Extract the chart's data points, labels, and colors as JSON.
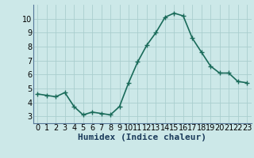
{
  "x": [
    0,
    1,
    2,
    3,
    4,
    5,
    6,
    7,
    8,
    9,
    10,
    11,
    12,
    13,
    14,
    15,
    16,
    17,
    18,
    19,
    20,
    21,
    22,
    23
  ],
  "y": [
    4.6,
    4.5,
    4.4,
    4.7,
    3.7,
    3.1,
    3.3,
    3.2,
    3.1,
    3.7,
    5.4,
    6.9,
    8.1,
    9.0,
    10.1,
    10.4,
    10.2,
    8.6,
    7.6,
    6.6,
    6.1,
    6.1,
    5.5,
    5.4
  ],
  "line_color": "#1a6b5a",
  "bg_color": "#cce8e8",
  "grid_color": "#aacece",
  "xlabel": "Humidex (Indice chaleur)",
  "ylim": [
    2.5,
    11.0
  ],
  "xlim": [
    -0.5,
    23.5
  ],
  "yticks": [
    3,
    4,
    5,
    6,
    7,
    8,
    9,
    10
  ],
  "xticks": [
    0,
    1,
    2,
    3,
    4,
    5,
    6,
    7,
    8,
    9,
    10,
    11,
    12,
    13,
    14,
    15,
    16,
    17,
    18,
    19,
    20,
    21,
    22,
    23
  ],
  "marker": "+",
  "marker_size": 4,
  "line_width": 1.2,
  "font_size_tick": 7,
  "font_size_label": 8
}
